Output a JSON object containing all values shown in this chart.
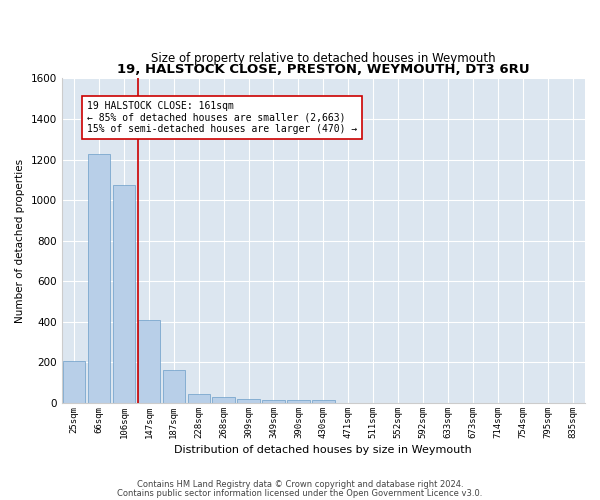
{
  "title": "19, HALSTOCK CLOSE, PRESTON, WEYMOUTH, DT3 6RU",
  "subtitle": "Size of property relative to detached houses in Weymouth",
  "xlabel": "Distribution of detached houses by size in Weymouth",
  "ylabel": "Number of detached properties",
  "footnote1": "Contains HM Land Registry data © Crown copyright and database right 2024.",
  "footnote2": "Contains public sector information licensed under the Open Government Licence v3.0.",
  "categories": [
    "25sqm",
    "66sqm",
    "106sqm",
    "147sqm",
    "187sqm",
    "228sqm",
    "268sqm",
    "309sqm",
    "349sqm",
    "390sqm",
    "430sqm",
    "471sqm",
    "511sqm",
    "552sqm",
    "592sqm",
    "633sqm",
    "673sqm",
    "714sqm",
    "754sqm",
    "795sqm",
    "835sqm"
  ],
  "values": [
    205,
    1225,
    1075,
    410,
    165,
    45,
    28,
    18,
    13,
    13,
    13,
    0,
    0,
    0,
    0,
    0,
    0,
    0,
    0,
    0,
    0
  ],
  "bar_color": "#b8cfe8",
  "bar_edge_color": "#6b9dc8",
  "background_color": "#dce6f0",
  "grid_color": "#ffffff",
  "annotation_line1": "19 HALSTOCK CLOSE: 161sqm",
  "annotation_line2": "← 85% of detached houses are smaller (2,663)",
  "annotation_line3": "15% of semi-detached houses are larger (470) →",
  "vline_x": 2.57,
  "vline_color": "#cc0000",
  "box_color": "#cc0000",
  "ylim": [
    0,
    1600
  ],
  "yticks": [
    0,
    200,
    400,
    600,
    800,
    1000,
    1200,
    1400,
    1600
  ]
}
